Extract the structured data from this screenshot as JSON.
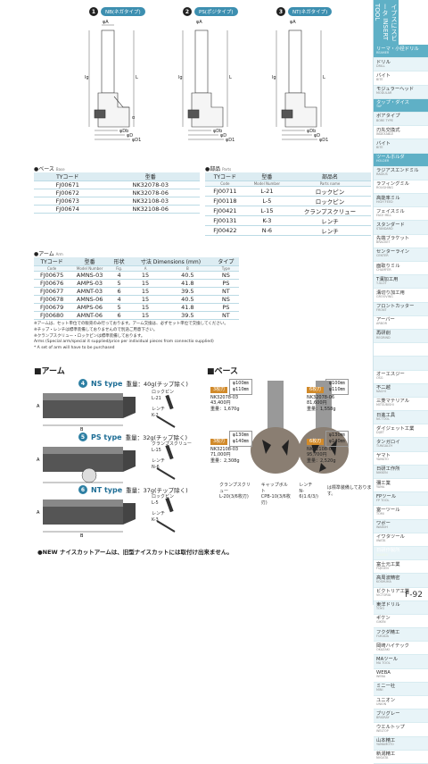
{
  "drawings": [
    {
      "num": "1",
      "label": "NB(ネガタイプ)"
    },
    {
      "num": "2",
      "label": "PS(ポジタイプ)"
    },
    {
      "num": "3",
      "label": "NT(ネガタイプ)"
    }
  ],
  "dims": {
    "phiA": "φA",
    "phiD": "φD",
    "phiDb": "φDb",
    "phiD1": "φD1",
    "L": "L",
    "Ls": "Ls",
    "lg": "lg",
    "alpha": "α"
  },
  "base_section": {
    "title": "●ベース",
    "sub": "Base",
    "headers": [
      "TYコード",
      "型番"
    ],
    "rows": [
      [
        "FJ00671",
        "NK32078-03"
      ],
      [
        "FJ00672",
        "NK32078-06"
      ],
      [
        "FJ00673",
        "NK32108-03"
      ],
      [
        "FJ00674",
        "NK32108-06"
      ]
    ]
  },
  "parts_section": {
    "title": "●部品",
    "sub": "Parts",
    "headers": [
      "TYコード",
      "型番",
      "部品名"
    ],
    "subheaders": [
      "Code",
      "Model Number",
      "Parts name"
    ],
    "rows": [
      [
        "FJ00711",
        "L-21",
        "ロックピン"
      ],
      [
        "FJ00118",
        "L-5",
        "ロックピン"
      ],
      [
        "FJ00421",
        "L-15",
        "クランプスクリュー"
      ],
      [
        "FJ00131",
        "K-3",
        "レンチ"
      ],
      [
        "FJ00422",
        "N-6",
        "レンチ"
      ]
    ]
  },
  "arm_section": {
    "title": "●アーム",
    "sub": "Arm",
    "headers": [
      "TYコード",
      "型番",
      "形状",
      "寸法 Dimensions (mm)",
      "タイプ"
    ],
    "subheaders": [
      "Code",
      "Model Number",
      "Fig.",
      "A",
      "B",
      "Type"
    ],
    "rows": [
      [
        "FJ00675",
        "AMNS-03",
        "4",
        "15",
        "40.5",
        "NS"
      ],
      [
        "FJ00676",
        "AMPS-03",
        "5",
        "15",
        "41.8",
        "PS"
      ],
      [
        "FJ00677",
        "AMNT-03",
        "6",
        "15",
        "39.5",
        "NT"
      ],
      [
        "FJ00678",
        "AMNS-06",
        "4",
        "15",
        "40.5",
        "NS"
      ],
      [
        "FJ00679",
        "AMPS-06",
        "5",
        "15",
        "41.8",
        "PS"
      ],
      [
        "FJ00680",
        "AMNT-06",
        "6",
        "15",
        "39.5",
        "NT"
      ]
    ]
  },
  "notes": [
    "※アームは、セット単位での販売のみ行っております。アーム交換は、必ずセット単位で交換してください。",
    "※チップ・レンチは標準装備しておりませんので別途ご用意下さい。",
    "※クランプスクリュー・ロックピンは標準装備しております。",
    "Arms (Special arm/special it supplied/price per individual pieces from connectio supplied)",
    "* A set of arm will have to be purchased"
  ],
  "arm_title": "■アーム",
  "base_title": "■ベース",
  "arm_types": [
    {
      "num": "4",
      "name": "NS type",
      "weight": "重量：40g(チップ除く)",
      "parts": [
        "ロックピン",
        "L-21",
        "レンチ",
        "K-2"
      ]
    },
    {
      "num": "5",
      "name": "PS type",
      "weight": "重量：32g(チップ除く)",
      "parts": [
        "クランプスクリュー",
        "L-15",
        "レンチ",
        "N-6"
      ]
    },
    {
      "num": "6",
      "name": "NT type",
      "weight": "重量：37g(チップ除く)",
      "parts": [
        "ロックピン",
        "L-5",
        "レンチ",
        "K-3"
      ]
    }
  ],
  "dim_letters": {
    "A": "A",
    "B": "B"
  },
  "new_note": "●NEW ナイスカットアームは、旧型ナイスカットには取付け出来ません。",
  "base_boxes": [
    {
      "hd": "3枚刃",
      "d1": "φ100㎜",
      "d2": "φ110㎜",
      "model": "NK32078-03",
      "price": "43,400円",
      "weight": "重量：1,670g"
    },
    {
      "hd": "6枚刃",
      "d1": "φ100㎜",
      "d2": "φ110㎜",
      "model": "NK32078-06",
      "price": "81,600円",
      "weight": "重量：1,558g"
    },
    {
      "hd": "3枚刃",
      "d1": "φ130㎜",
      "d2": "φ140㎜",
      "model": "NK32108-03",
      "price": "71,000円",
      "weight": "重量：2,308g"
    },
    {
      "hd": "6枚刃",
      "d1": "φ130㎜",
      "d2": "φ140㎜",
      "model": "NK32108-06",
      "price": "95,700円",
      "weight": "重量：2,520g"
    }
  ],
  "base_parts": [
    "クランプスクリュー",
    "L-20(3/6枚刃)",
    "キャップボルト",
    "CPB-10(3/6枚刃)",
    "レンチ",
    "N-6(1.6/3/)",
    "は標準装備しております。"
  ],
  "sidebar": {
    "header": "イプスにスビータ INSERT TOOL",
    "items": [
      [
        "リーマ・小径ドリル",
        "REAMER"
      ],
      [
        "ドリル",
        "DRILL"
      ],
      [
        "バイト",
        "BITE"
      ],
      [
        "モジュラーヘッド",
        "MODULAR"
      ],
      [
        "タップ・ダイス",
        "TAP"
      ],
      [
        "ボアタイプ",
        "BORE TYPE"
      ],
      [
        "刃先交換式",
        "INDEXABLE"
      ],
      [
        "バイト",
        "BITE"
      ],
      [
        "ツールホルダ",
        "HOLDER"
      ],
      [
        "ラジアスエンドミル",
        "RADIUS"
      ],
      [
        "ラフィングミル",
        "ROUGHING"
      ],
      [
        "高能率ミル",
        "HIGH FEED"
      ],
      [
        "フェイスミル",
        "FACE MILL"
      ],
      [
        "スタンダード",
        "STANDARD"
      ],
      [
        "先端ブラケット",
        "BRACKET"
      ],
      [
        "センターライン",
        "CENTER"
      ],
      [
        "面取りミル",
        "CHAMFER"
      ],
      [
        "T溝加工用",
        "T-SLOT"
      ],
      [
        "溝切り加工用",
        "GROOVING"
      ],
      [
        "フロントカッター",
        "FRONT"
      ],
      [
        "アーバー",
        "ARBOR"
      ],
      [
        "再研削",
        "REGRIND"
      ],
      [
        "",
        ""
      ],
      [
        "",
        ""
      ],
      [
        "オーエスジー",
        "OSG"
      ],
      [
        "不二越",
        "NACHI"
      ],
      [
        "三菱マテリアル",
        "MITSUBISHI"
      ],
      [
        "日進工具",
        "NS TOOL"
      ],
      [
        "ダイジェット工業",
        "DIJET"
      ],
      [
        "タンガロイ",
        "TUNGALOY"
      ],
      [
        "ヤマト",
        "YAMATO"
      ],
      [
        "日研工作所",
        "NIKKEN"
      ],
      [
        "彌工業",
        "YAMA"
      ],
      [
        "FPツール",
        "FP TOOL"
      ],
      [
        "富一ツール",
        "TOMI"
      ],
      [
        "ワボー",
        "WABOH"
      ],
      [
        "イワタツール",
        "IWATA"
      ],
      [
        "日研作製所",
        "NIKKEN"
      ],
      [
        "富士元工業",
        "FUJIGEN"
      ],
      [
        "高周波精密",
        "KOSHUHA"
      ],
      [
        "ビクトリア工業",
        "VICTORIA"
      ],
      [
        "東洋ドリル",
        "TOYO"
      ],
      [
        "ギケン",
        "GIKEN"
      ],
      [
        "フクダ精工",
        "FUKUDA"
      ],
      [
        "岡崎ハイテック",
        "OKAZAKI"
      ],
      [
        "MAツール",
        "MA TOOL"
      ],
      [
        "WEBA",
        "WEBA"
      ],
      [
        "ミニ一社",
        "MINI"
      ],
      [
        "ユニオン",
        "UNION"
      ],
      [
        "ブリグレー",
        "BRIGRAY"
      ],
      [
        "ウエルトップ",
        "WELTOP"
      ],
      [
        "山本精工",
        "YAMAMOTO"
      ],
      [
        "新潟精工",
        "NIIGATA"
      ]
    ]
  },
  "page_number": "F-92"
}
